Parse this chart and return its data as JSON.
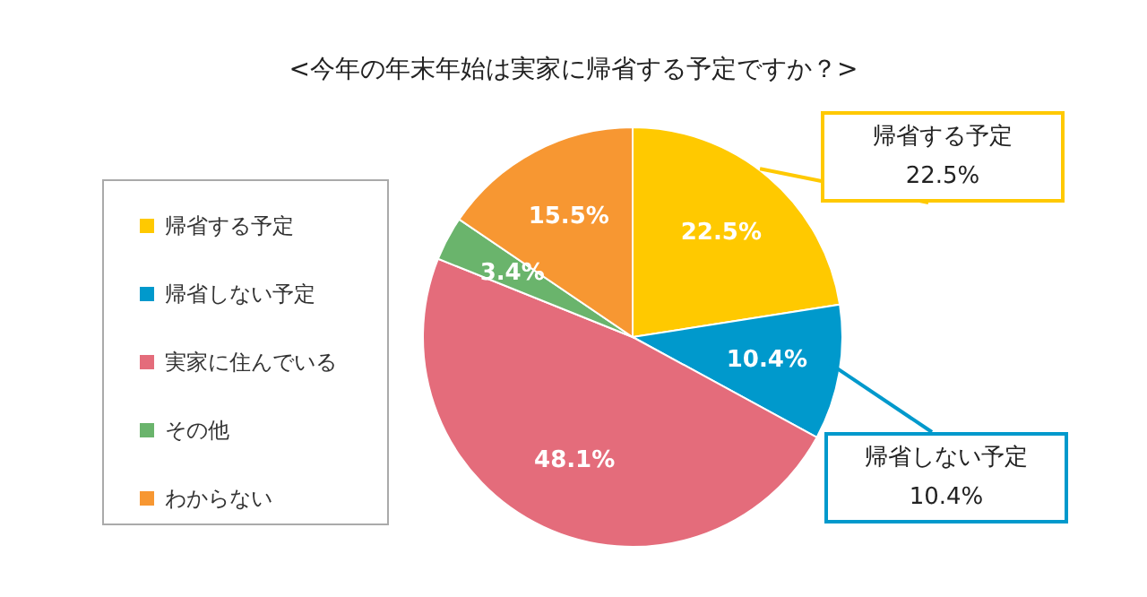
{
  "chart_data": {
    "type": "pie",
    "title": "<今年の年末年始は実家に帰省する予定ですか？>",
    "categories": [
      "帰省する予定",
      "帰省しない予定",
      "実家に住んでいる",
      "その他",
      "わからない"
    ],
    "values": [
      22.5,
      10.4,
      48.1,
      3.4,
      15.5
    ],
    "colors": [
      "#ffc900",
      "#0099cc",
      "#e46c7b",
      "#6ab46c",
      "#f79732"
    ],
    "value_labels": [
      "22.5%",
      "10.4%",
      "48.1%",
      "3.4%",
      "15.5%"
    ],
    "legend": "left",
    "annotations": [
      "帰省する予定\n22.5%",
      "帰省しない予定\n10.4%"
    ]
  }
}
